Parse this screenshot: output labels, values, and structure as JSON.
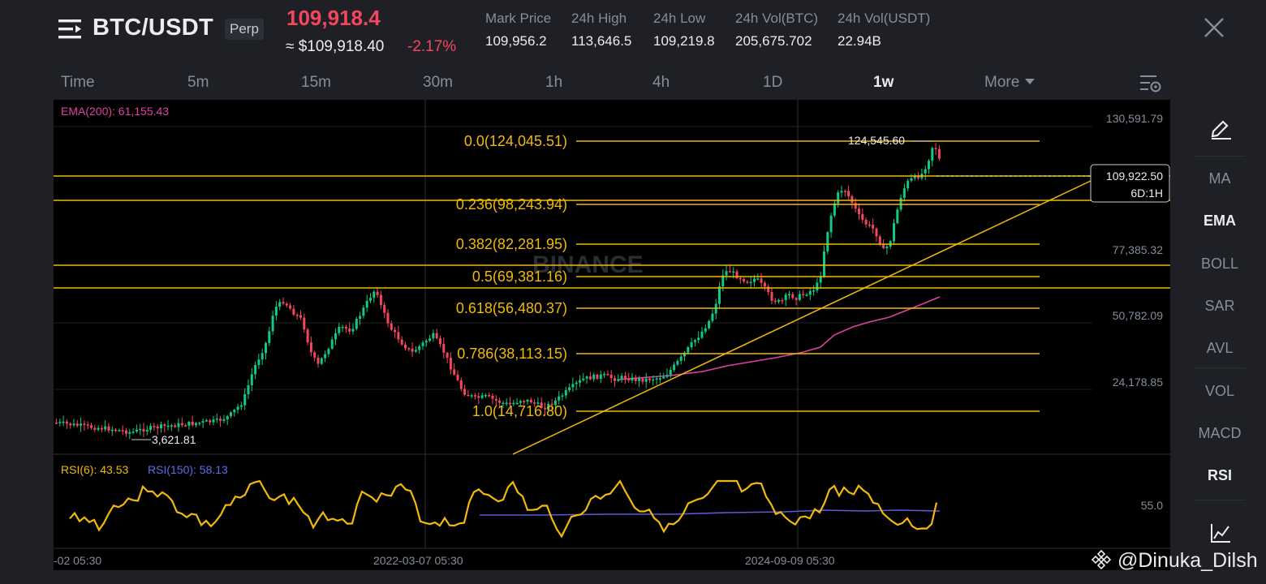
{
  "header": {
    "pair": "BTC/USDT",
    "badge": "Perp",
    "last_price": "109,918.4",
    "approx_usd": "≈ $109,918.40",
    "change_pct": "-2.17%",
    "stats": [
      {
        "label": "Mark Price",
        "value": "109,956.2"
      },
      {
        "label": "24h High",
        "value": "113,646.5"
      },
      {
        "label": "24h Low",
        "value": "109,219.8"
      },
      {
        "label": "24h Vol(BTC)",
        "value": "205,675.702"
      },
      {
        "label": "24h Vol(USDT)",
        "value": "22.94B"
      }
    ]
  },
  "timeframes": [
    {
      "label": "Time",
      "active": false
    },
    {
      "label": "5m",
      "active": false
    },
    {
      "label": "15m",
      "active": false
    },
    {
      "label": "30m",
      "active": false
    },
    {
      "label": "1h",
      "active": false
    },
    {
      "label": "4h",
      "active": false
    },
    {
      "label": "1D",
      "active": false
    },
    {
      "label": "1w",
      "active": true
    },
    {
      "label": "More",
      "active": false
    }
  ],
  "chart": {
    "ema_label": "EMA(200): 61,155.43",
    "watermark": "BINANCE",
    "price_axis": [
      "130,591.79",
      "77,385.32",
      "50,782.09",
      "24,178.85"
    ],
    "price_axis_values": [
      130591.79,
      77385.32,
      50782.09,
      24178.85
    ],
    "current_price_tag": "109,922.50",
    "countdown": "6D:1H",
    "high_label": "124,545.60",
    "low_label": "3,621.81",
    "fib_levels": [
      {
        "label": "0.0(124,045.51)",
        "price": 124045.51
      },
      {
        "label": "0.236(98,243.94)",
        "price": 98243.94
      },
      {
        "label": "0.382(82,281.95)",
        "price": 82281.95
      },
      {
        "label": "0.5(69,381.16)",
        "price": 69381.16
      },
      {
        "label": "0.618(56,480.37)",
        "price": 56480.37
      },
      {
        "label": "0.786(38,113.15)",
        "price": 38113.15
      },
      {
        "label": "1.0(14,716.80)",
        "price": 14716.8
      }
    ],
    "rsi_fast_label": "RSI(6): 43.53",
    "rsi_slow_label": "RSI(150): 58.13",
    "rsi_axis": "55.0",
    "time_axis": [
      "-02 05:30",
      "2022-03-07 05:30",
      "2024-09-09 05:30"
    ],
    "colors": {
      "up": "#0ecb81",
      "down": "#f6465d",
      "fib": "#f0b90b",
      "ema": "#e040a0",
      "rsi_fast": "#f0b90b",
      "rsi_slow": "#5b5bd6"
    }
  },
  "indicators": [
    {
      "label": "MA",
      "active": false
    },
    {
      "label": "EMA",
      "active": true
    },
    {
      "label": "BOLL",
      "active": false
    },
    {
      "label": "SAR",
      "active": false
    },
    {
      "label": "AVL",
      "active": false
    },
    {
      "label": "VOL",
      "active": false
    },
    {
      "label": "MACD",
      "active": false
    },
    {
      "label": "RSI",
      "active": true
    }
  ],
  "icons": {
    "menu": "menu-icon",
    "close": "close-icon",
    "settings": "chart-settings-icon",
    "draw": "pencil-icon",
    "chart_type": "line-chart-icon"
  },
  "watermark": "@Dinuka_Dilsh"
}
